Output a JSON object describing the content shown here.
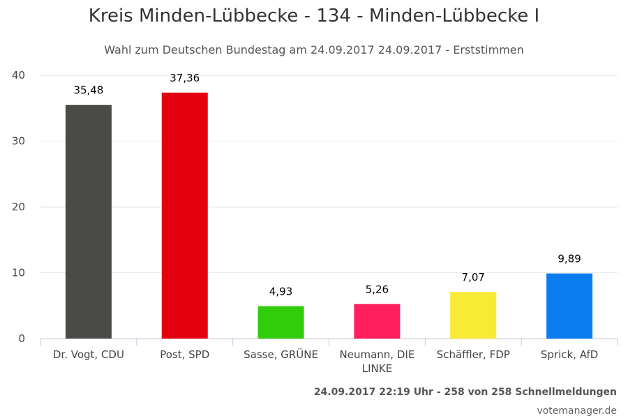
{
  "chart_data": {
    "type": "bar",
    "title": "Kreis Minden-Lübbecke - 134 - Minden-Lübbecke I",
    "subtitle": "Wahl zum Deutschen Bundestag am 24.09.2017 24.09.2017 - Erststimmen",
    "categories": [
      "Dr. Vogt, CDU",
      "Post, SPD",
      "Sasse, GRÜNE",
      "Neumann, DIE LINKE",
      "Schäffler, FDP",
      "Sprick, AfD"
    ],
    "values": [
      35.48,
      37.36,
      4.93,
      5.26,
      7.07,
      9.89
    ],
    "value_labels": [
      "35,48",
      "37,36",
      "4,93",
      "5,26",
      "7,07",
      "9,89"
    ],
    "colors": [
      "#4a4a46",
      "#e3000f",
      "#32cd0a",
      "#ff1f5f",
      "#f7eb35",
      "#0a7cf0"
    ],
    "ylim": [
      0,
      40
    ],
    "yticks": [
      0,
      10,
      20,
      30,
      40
    ],
    "grid": true,
    "legend": "none"
  },
  "footer": {
    "status": "24.09.2017 22:19 Uhr - 258 von 258 Schnellmeldungen",
    "credit": "votemanager.de"
  }
}
